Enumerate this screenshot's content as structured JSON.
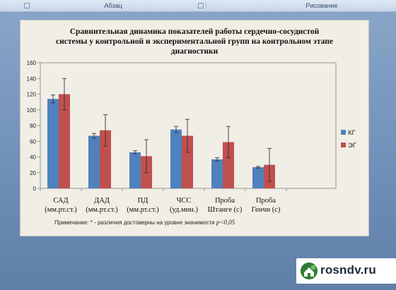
{
  "ribbon": {
    "group_paragraph": "Абзац",
    "group_drawing": "Рисование"
  },
  "chart_data": {
    "type": "bar",
    "title": "Сравнительная динамика показателей работы сердечно-сосудистой системы у контрольной и экспериментальной групп на контрольном этапе диагностики",
    "categories": [
      [
        "САД",
        "(мм.рт.ст.)"
      ],
      [
        "ДАД",
        "(мм.рт.ст.)"
      ],
      [
        "ПД",
        "(мм.рт.ст.)"
      ],
      [
        "ЧСС",
        "(уд.мин.)"
      ],
      [
        "Проба",
        "Штанге (с)"
      ],
      [
        "Проба",
        "Генчи (с)"
      ]
    ],
    "series": [
      {
        "name": "КГ",
        "color": "#4f81bd",
        "values": [
          114,
          67,
          46,
          75,
          37,
          27
        ],
        "errors": [
          5,
          3,
          2,
          4,
          2,
          1
        ]
      },
      {
        "name": "ЭГ",
        "color": "#c0504d",
        "values": [
          120,
          74,
          41,
          67,
          59,
          30
        ],
        "errors": [
          20,
          20,
          21,
          21,
          20,
          21
        ]
      }
    ],
    "ylim": [
      0,
      160
    ],
    "yticks": [
      0,
      20,
      40,
      60,
      80,
      100,
      120,
      140,
      160
    ],
    "grid": false,
    "legend_position": "right",
    "note_prefix": "Примечание: * - различия достоверны на уровне значимости ",
    "note_p": "p<0,05"
  },
  "watermark": {
    "text": "rosndv.ru"
  }
}
